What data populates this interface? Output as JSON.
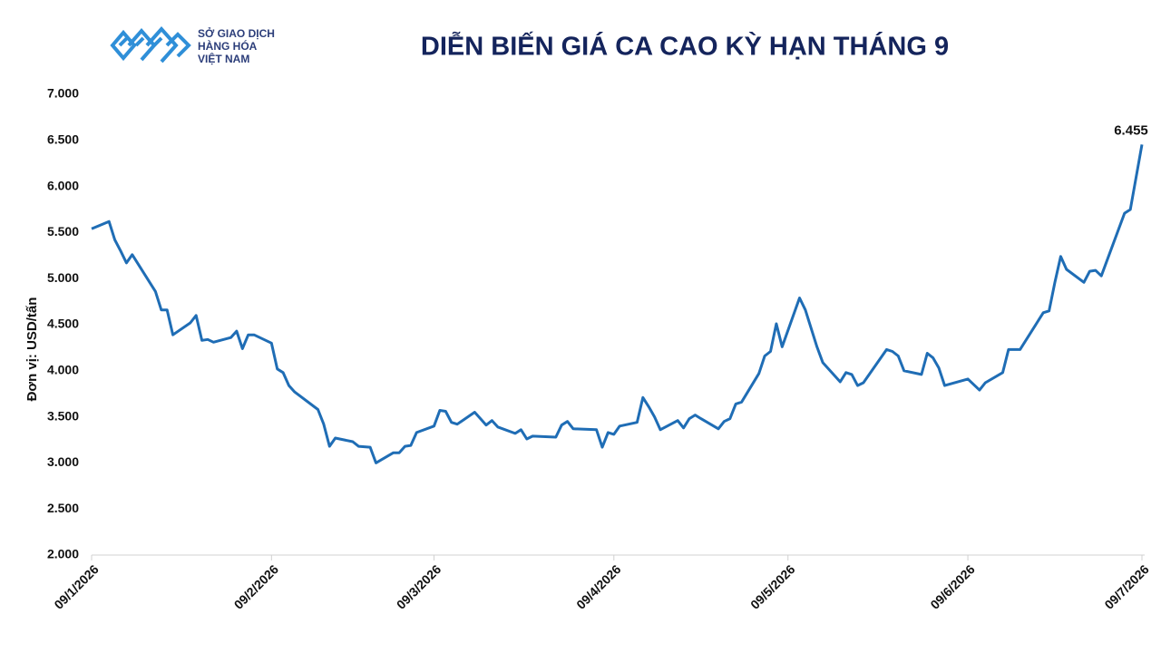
{
  "logo": {
    "lines": [
      "SỞ GIAO DỊCH",
      "HÀNG HÓA",
      "VIỆT NAM"
    ]
  },
  "chart_data": {
    "type": "line",
    "title": "DIỄN BIẾN GIÁ CA CAO KỲ HẠN THÁNG 9",
    "y_label": "Đơn vị: USD/tấn",
    "color": "#1f6db5",
    "xlim": [
      "2026-01-09",
      "2026-07-09"
    ],
    "xticks": [
      {
        "value": "2026-01-09",
        "label": "09/1/2026"
      },
      {
        "value": "2026-02-09",
        "label": "09/2/2026"
      },
      {
        "value": "2026-03-09",
        "label": "09/3/2026"
      },
      {
        "value": "2026-04-09",
        "label": "09/4/2026"
      },
      {
        "value": "2026-05-09",
        "label": "09/5/2026"
      },
      {
        "value": "2026-06-09",
        "label": "09/6/2026"
      },
      {
        "value": "2026-07-09",
        "label": "09/7/2026"
      }
    ],
    "ylim": [
      2000,
      7000
    ],
    "yticks": [
      {
        "value": 2000,
        "label": "2.000"
      },
      {
        "value": 2500,
        "label": "2.500"
      },
      {
        "value": 3000,
        "label": "3.000"
      },
      {
        "value": 3500,
        "label": "3.500"
      },
      {
        "value": 4000,
        "label": "4.000"
      },
      {
        "value": 4500,
        "label": "4.500"
      },
      {
        "value": 5000,
        "label": "5.000"
      },
      {
        "value": 5500,
        "label": "5.500"
      },
      {
        "value": 6000,
        "label": "6.000"
      },
      {
        "value": 6500,
        "label": "6.500"
      },
      {
        "value": 7000,
        "label": "7.000"
      }
    ],
    "x": [
      "2026-01-09",
      "2026-01-12",
      "2026-01-13",
      "2026-01-14",
      "2026-01-15",
      "2026-01-16",
      "2026-01-20",
      "2026-01-21",
      "2026-01-22",
      "2026-01-23",
      "2026-01-26",
      "2026-01-27",
      "2026-01-28",
      "2026-01-29",
      "2026-01-30",
      "2026-02-02",
      "2026-02-03",
      "2026-02-04",
      "2026-02-05",
      "2026-02-06",
      "2026-02-09",
      "2026-02-10",
      "2026-02-11",
      "2026-02-12",
      "2026-02-13",
      "2026-02-17",
      "2026-02-18",
      "2026-02-19",
      "2026-02-20",
      "2026-02-23",
      "2026-02-24",
      "2026-02-26",
      "2026-02-27",
      "2026-03-02",
      "2026-03-03",
      "2026-03-04",
      "2026-03-05",
      "2026-03-06",
      "2026-03-09",
      "2026-03-10",
      "2026-03-11",
      "2026-03-12",
      "2026-03-13",
      "2026-03-16",
      "2026-03-17",
      "2026-03-18",
      "2026-03-19",
      "2026-03-20",
      "2026-03-23",
      "2026-03-24",
      "2026-03-25",
      "2026-03-26",
      "2026-03-30",
      "2026-03-31",
      "2026-04-01",
      "2026-04-02",
      "2026-04-06",
      "2026-04-07",
      "2026-04-08",
      "2026-04-09",
      "2026-04-10",
      "2026-04-13",
      "2026-04-14",
      "2026-04-15",
      "2026-04-16",
      "2026-04-17",
      "2026-04-20",
      "2026-04-21",
      "2026-04-22",
      "2026-04-23",
      "2026-04-24",
      "2026-04-27",
      "2026-04-28",
      "2026-04-29",
      "2026-04-30",
      "2026-05-01",
      "2026-05-04",
      "2026-05-05",
      "2026-05-06",
      "2026-05-07",
      "2026-05-08",
      "2026-05-11",
      "2026-05-12",
      "2026-05-13",
      "2026-05-14",
      "2026-05-15",
      "2026-05-18",
      "2026-05-19",
      "2026-05-20",
      "2026-05-21",
      "2026-05-22",
      "2026-05-26",
      "2026-05-27",
      "2026-05-28",
      "2026-05-29",
      "2026-06-01",
      "2026-06-02",
      "2026-06-03",
      "2026-06-04",
      "2026-06-05",
      "2026-06-09",
      "2026-06-11",
      "2026-06-12",
      "2026-06-15",
      "2026-06-16",
      "2026-06-18",
      "2026-06-22",
      "2026-06-23",
      "2026-06-24",
      "2026-06-25",
      "2026-06-26",
      "2026-06-29",
      "2026-06-30",
      "2026-07-01",
      "2026-07-02",
      "2026-07-06",
      "2026-07-07",
      "2026-07-09"
    ],
    "values": [
      5540,
      5620,
      5420,
      5300,
      5170,
      5260,
      4860,
      4660,
      4660,
      4390,
      4520,
      4600,
      4330,
      4340,
      4310,
      4360,
      4430,
      4240,
      4390,
      4390,
      4300,
      4020,
      3980,
      3840,
      3770,
      3580,
      3420,
      3180,
      3270,
      3230,
      3180,
      3170,
      3000,
      3110,
      3110,
      3180,
      3190,
      3330,
      3400,
      3570,
      3560,
      3440,
      3420,
      3550,
      3480,
      3410,
      3460,
      3390,
      3320,
      3360,
      3260,
      3290,
      3280,
      3410,
      3450,
      3370,
      3360,
      3170,
      3330,
      3310,
      3400,
      3440,
      3710,
      3610,
      3500,
      3360,
      3460,
      3380,
      3480,
      3520,
      3480,
      3370,
      3450,
      3480,
      3640,
      3660,
      3970,
      4160,
      4210,
      4510,
      4260,
      4790,
      4660,
      4460,
      4260,
      4090,
      3880,
      3980,
      3960,
      3840,
      3870,
      4230,
      4210,
      4160,
      4000,
      3960,
      4190,
      4140,
      4030,
      3840,
      3910,
      3790,
      3870,
      3980,
      4230,
      4230,
      4630,
      4650,
      4960,
      5240,
      5100,
      4960,
      5080,
      5090,
      5030,
      5710,
      5750,
      6455
    ],
    "annotations": [
      {
        "x": "2026-07-09",
        "text": "6.455"
      }
    ]
  }
}
